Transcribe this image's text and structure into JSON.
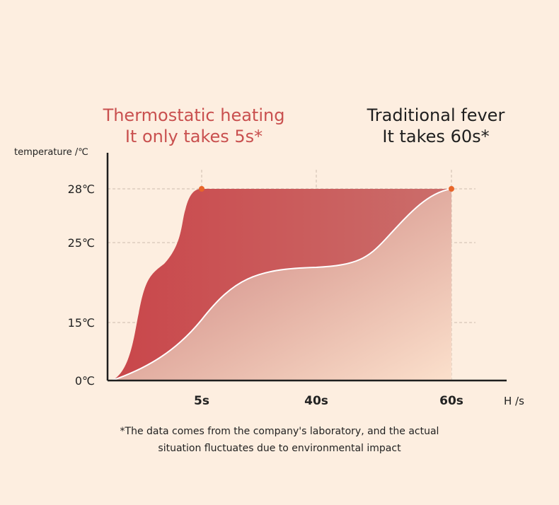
{
  "chart_data": {
    "type": "area",
    "annotation_a": [
      "Thermostatic heating",
      "It only takes 5s*"
    ],
    "annotation_b": [
      "Traditional fever",
      "It takes 60s*"
    ],
    "ylabel": "temperature /℃",
    "xlabel": "H /s",
    "yticks": [
      {
        "value": 0,
        "label": "0℃"
      },
      {
        "value": 15,
        "label": "15℃"
      },
      {
        "value": 25,
        "label": "25℃"
      },
      {
        "value": 28,
        "label": "28℃"
      }
    ],
    "xticks": [
      {
        "value": 5,
        "label": "5s"
      },
      {
        "value": 40,
        "label": "40s"
      },
      {
        "value": 60,
        "label": "60s"
      }
    ],
    "series": [
      {
        "x": [
          0,
          5
        ],
        "y": [
          0,
          28
        ],
        "color": "#c9464a"
      },
      {
        "x": [
          0,
          60
        ],
        "y": [
          0,
          28
        ],
        "color": "#ffffff"
      }
    ],
    "markers": [
      {
        "x": 5,
        "y": 28
      },
      {
        "x": 60,
        "y": 28
      }
    ],
    "marker_color": "#e8662a",
    "footnote": [
      "*The data comes from the company's laboratory, and the actual",
      "situation fluctuates due to environmental impact"
    ],
    "grid": true
  }
}
